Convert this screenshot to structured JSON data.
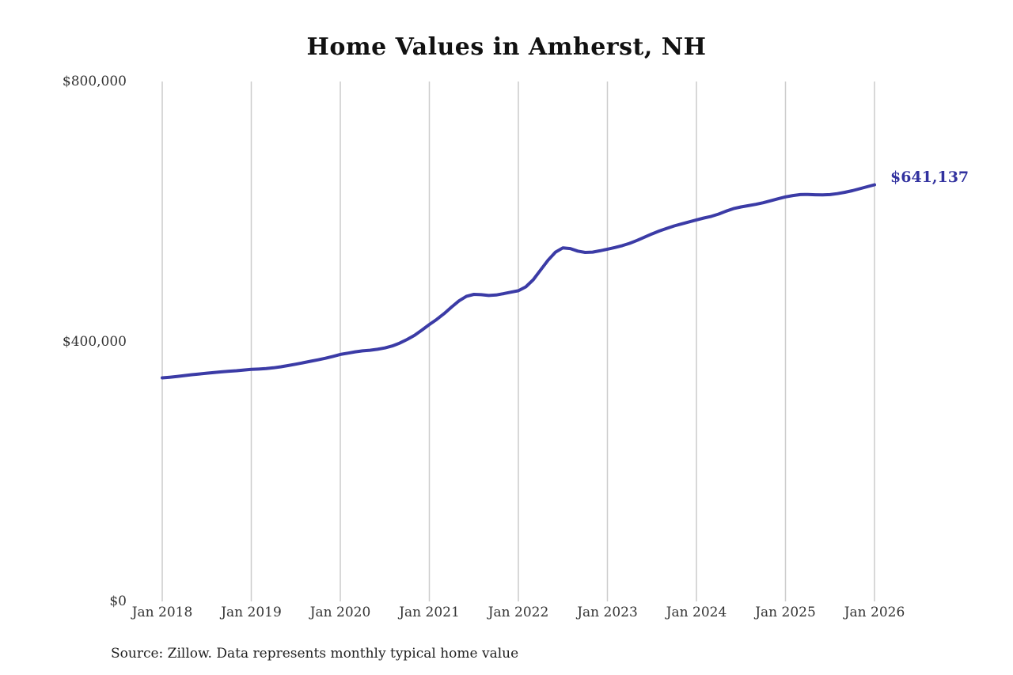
{
  "page": {
    "background": "#ffffff"
  },
  "chart_data": {
    "type": "line",
    "title": "Home Values in Amherst, NH",
    "xlabel": "",
    "ylabel": "",
    "ylim": [
      0,
      800000
    ],
    "grid": "vertical-only",
    "gridline_color": "#cccccc",
    "line_color": "#3b3ba6",
    "end_label": "$641,137",
    "end_label_color": "#32329f",
    "source_note": "Source: Zillow. Data represents monthly typical home value",
    "y_ticks": [
      {
        "label": "$0",
        "value": 0
      },
      {
        "label": "$400,000",
        "value": 400000
      },
      {
        "label": "$800,000",
        "value": 800000
      }
    ],
    "x_ticks": [
      {
        "label": "Jan 2018",
        "month_index": 0
      },
      {
        "label": "Jan 2019",
        "month_index": 12
      },
      {
        "label": "Jan 2020",
        "month_index": 24
      },
      {
        "label": "Jan 2021",
        "month_index": 36
      },
      {
        "label": "Jan 2022",
        "month_index": 48
      },
      {
        "label": "Jan 2023",
        "month_index": 60
      },
      {
        "label": "Jan 2024",
        "month_index": 72
      },
      {
        "label": "Jan 2025",
        "month_index": 84
      },
      {
        "label": "Jan 2026",
        "month_index": 96
      }
    ],
    "series": [
      {
        "name": "Monthly typical home value",
        "x_start": "Jan 2018",
        "x_step": "1 month",
        "values": [
          344000,
          345000,
          346200,
          347500,
          348800,
          350000,
          351200,
          352300,
          353300,
          354200,
          355000,
          356000,
          357000,
          357500,
          358200,
          359500,
          361000,
          363000,
          365000,
          367200,
          369500,
          371800,
          374200,
          377000,
          380000,
          382000,
          384000,
          385500,
          386500,
          388000,
          390000,
          393000,
          397500,
          403000,
          409500,
          417500,
          426000,
          434000,
          443000,
          453000,
          462500,
          469500,
          472500,
          472000,
          470800,
          471500,
          473500,
          475800,
          478000,
          484000,
          495000,
          510000,
          525000,
          537500,
          544000,
          543000,
          539000,
          537000,
          537500,
          539500,
          542000,
          544500,
          547500,
          551000,
          555500,
          560500,
          565500,
          570000,
          574000,
          577800,
          581000,
          584000,
          587000,
          590000,
          592500,
          596000,
          600500,
          604500,
          607000,
          609000,
          611000,
          613500,
          616500,
          619500,
          622500,
          624500,
          626000,
          626200,
          625800,
          625500,
          626000,
          627500,
          629500,
          632000,
          635000,
          638000,
          641137
        ]
      }
    ]
  }
}
